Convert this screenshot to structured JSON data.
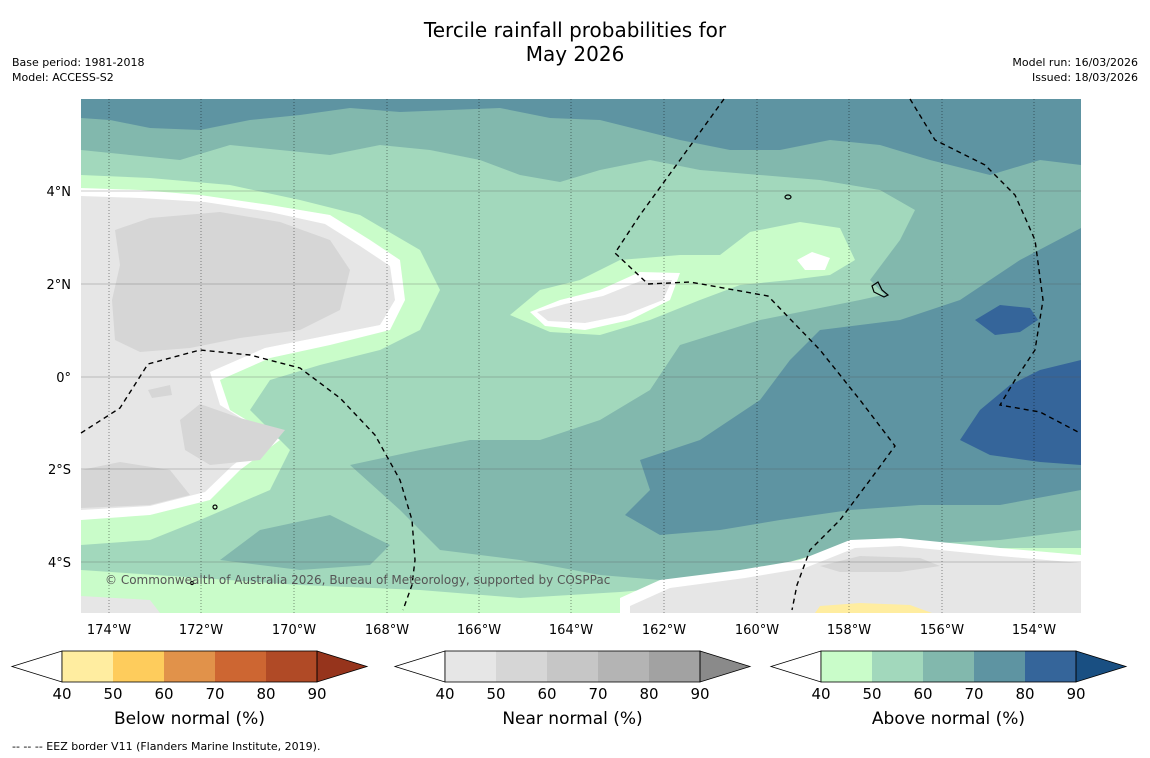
{
  "header": {
    "title_line1": "Tercile rainfall probabilities for",
    "title_line2": "May 2026",
    "base_period": "Base period: 1981-2018",
    "model": "Model: ACCESS-S2",
    "model_run": "Model run: 16/03/2026",
    "issued": "Issued: 18/03/2026"
  },
  "map": {
    "lon_labels": [
      "174°W",
      "172°W",
      "170°W",
      "168°W",
      "166°W",
      "164°W",
      "162°W",
      "160°W",
      "158°W",
      "156°W",
      "154°W"
    ],
    "lat_labels": [
      "4°N",
      "2°N",
      "0°",
      "2°S",
      "4°S"
    ],
    "copyright": "© Commonwealth of Australia 2026, Bureau of Meteorology, supported by COSPPac"
  },
  "colorbars": [
    {
      "title": "Below normal (%)",
      "ticks": [
        "40",
        "50",
        "60",
        "70",
        "80",
        "90"
      ],
      "colors": [
        "#ffffff",
        "#ffeda0",
        "#fecc5c",
        "#e1924a",
        "#cd6632",
        "#b04a26",
        "#96341c"
      ]
    },
    {
      "title": "Near normal (%)",
      "ticks": [
        "40",
        "50",
        "60",
        "70",
        "80",
        "90"
      ],
      "colors": [
        "#ffffff",
        "#e6e6e6",
        "#d6d6d6",
        "#c6c6c6",
        "#b4b4b4",
        "#a2a2a2",
        "#8a8a8a"
      ]
    },
    {
      "title": "Above normal (%)",
      "ticks": [
        "40",
        "50",
        "60",
        "70",
        "80",
        "90"
      ],
      "colors": [
        "#ffffff",
        "#c9fcc9",
        "#a2d8bc",
        "#82b8ad",
        "#5e94a2",
        "#35659a",
        "#194f82"
      ]
    }
  ],
  "footer": {
    "eez_note": "--  --  -- EEZ border V11 (Flanders Marine Institute, 2019)."
  }
}
